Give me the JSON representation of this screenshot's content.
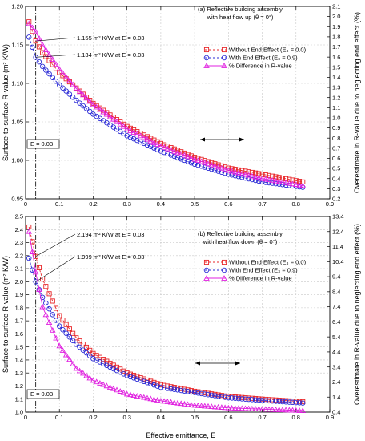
{
  "xlabel": "Effective emittance, E",
  "colors": {
    "without": "#e8272a",
    "with": "#2b2bd6",
    "diff": "#e020e0",
    "grid": "#c8c8c8"
  },
  "chart_data": [
    {
      "type": "line",
      "panel_label": "(a) Reflective building assembly",
      "panel_label2": "with heat flow up (θ = 0°)",
      "ylabel_left": "Surface-to-surface R-value (m² K/W)",
      "ylabel_right": "Overestimate in R-value due to neglecting end effect (%)",
      "xlim": [
        0,
        0.9
      ],
      "ylim_left": [
        0.95,
        1.2
      ],
      "ylim_right": [
        0.2,
        2.1
      ],
      "xticks": [
        "0",
        "0.1",
        "0.2",
        "0.3",
        "0.4",
        "0.5",
        "0.6",
        "0.7",
        "0.8",
        "0.9"
      ],
      "yticks_left": [
        "0.95",
        "1.00",
        "1.05",
        "1.10",
        "1.15",
        "1.20"
      ],
      "yticks_right": [
        "0.2",
        "0.3",
        "0.4",
        "0.5",
        "0.6",
        "0.7",
        "0.8",
        "0.9",
        "1.0",
        "1.1",
        "1.2",
        "1.3",
        "1.4",
        "1.5",
        "1.6",
        "1.7",
        "1.8",
        "1.9",
        "2.0",
        "2.1"
      ],
      "vline_label": "E = 0.03",
      "vline_x": 0.03,
      "annotations": [
        "1.155 m² K/W at E = 0.03",
        "1.134 m² K/W at E = 0.03"
      ],
      "series": [
        {
          "name": "Without End Effect (E₃ = 0.0)",
          "axis": "left",
          "x": [
            0.01,
            0.03,
            0.05,
            0.1,
            0.15,
            0.2,
            0.3,
            0.4,
            0.5,
            0.6,
            0.7,
            0.82
          ],
          "values": [
            1.18,
            1.155,
            1.14,
            1.114,
            1.094,
            1.074,
            1.044,
            1.022,
            1.004,
            0.99,
            0.982,
            0.972
          ]
        },
        {
          "name": "With End Effect (E₃ = 0.9)",
          "axis": "left",
          "x": [
            0.01,
            0.03,
            0.05,
            0.1,
            0.15,
            0.2,
            0.3,
            0.4,
            0.5,
            0.6,
            0.7,
            0.82
          ],
          "values": [
            1.16,
            1.134,
            1.122,
            1.098,
            1.078,
            1.06,
            1.032,
            1.012,
            0.995,
            0.982,
            0.972,
            0.965
          ]
        },
        {
          "name": "% Difference in R-value",
          "axis": "right",
          "x": [
            0.01,
            0.03,
            0.05,
            0.1,
            0.15,
            0.2,
            0.3,
            0.4,
            0.5,
            0.6,
            0.7,
            0.82
          ],
          "values": [
            1.93,
            1.85,
            1.72,
            1.48,
            1.29,
            1.13,
            0.89,
            0.72,
            0.59,
            0.48,
            0.4,
            0.33
          ]
        }
      ]
    },
    {
      "type": "line",
      "panel_label": "(b) Reflective building assembly",
      "panel_label2": "with heat flow down (θ = 0°)",
      "ylabel_left": "Surface-to-surface R-value (m² K/W)",
      "ylabel_right": "Overestimate in R-value due to neglecting end effect (%)",
      "xlim": [
        0,
        0.9
      ],
      "ylim_left": [
        1.0,
        2.5
      ],
      "ylim_right": [
        0.4,
        13.4
      ],
      "xticks": [
        "0",
        "0.1",
        "0.2",
        "0.3",
        "0.4",
        "0.5",
        "0.6",
        "0.7",
        "0.8",
        "0.9"
      ],
      "yticks_left": [
        "1.0",
        "1.1",
        "1.2",
        "1.3",
        "1.4",
        "1.5",
        "1.6",
        "1.7",
        "1.8",
        "1.9",
        "2.0",
        "2.1",
        "2.2",
        "2.3",
        "2.4",
        "2.5"
      ],
      "yticks_right": [
        "0.4",
        "1.4",
        "2.4",
        "3.4",
        "4.4",
        "5.4",
        "6.4",
        "7.4",
        "8.4",
        "9.4",
        "10.4",
        "11.4",
        "12.4",
        "13.4"
      ],
      "vline_label": "E = 0.03",
      "vline_x": 0.03,
      "annotations": [
        "2.194 m² K/W at E = 0.03",
        "1.999 m² K/W at E = 0.03"
      ],
      "series": [
        {
          "name": "Without End Effect (E₃ = 0.0)",
          "axis": "left",
          "x": [
            0.01,
            0.03,
            0.05,
            0.1,
            0.15,
            0.2,
            0.3,
            0.4,
            0.5,
            0.6,
            0.7,
            0.82
          ],
          "values": [
            2.42,
            2.194,
            2.02,
            1.74,
            1.57,
            1.45,
            1.3,
            1.21,
            1.16,
            1.12,
            1.1,
            1.08
          ]
        },
        {
          "name": "With End Effect (E₃ = 0.9)",
          "axis": "left",
          "x": [
            0.01,
            0.03,
            0.05,
            0.1,
            0.15,
            0.2,
            0.3,
            0.4,
            0.5,
            0.6,
            0.7,
            0.82
          ],
          "values": [
            2.18,
            1.999,
            1.88,
            1.66,
            1.52,
            1.41,
            1.28,
            1.19,
            1.15,
            1.11,
            1.09,
            1.07
          ]
        },
        {
          "name": "% Difference in R-value",
          "axis": "right",
          "x": [
            0.01,
            0.03,
            0.05,
            0.1,
            0.15,
            0.2,
            0.3,
            0.4,
            0.5,
            0.6,
            0.7,
            0.82
          ],
          "values": [
            12.4,
            9.7,
            7.4,
            4.8,
            3.3,
            2.5,
            1.6,
            1.15,
            0.85,
            0.68,
            0.6,
            0.5
          ]
        }
      ]
    }
  ]
}
